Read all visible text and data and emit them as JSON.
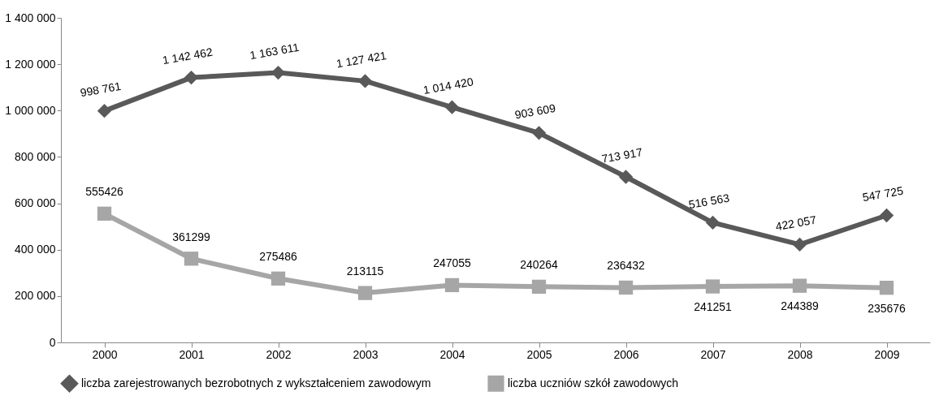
{
  "chart_data": {
    "type": "line",
    "categories": [
      "2000",
      "2001",
      "2002",
      "2003",
      "2004",
      "2005",
      "2006",
      "2007",
      "2008",
      "2009"
    ],
    "series": [
      {
        "name": "liczba zarejestrowanych bezrobotnych z wykształceniem zawodowym",
        "color": "#595959",
        "marker": "diamond",
        "values": [
          998761,
          1142462,
          1163611,
          1127421,
          1014420,
          903609,
          713917,
          516563,
          422057,
          547725
        ],
        "value_labels": [
          "998 761",
          "1 142 462",
          "1 163 611",
          "1 127 421",
          "1 014 420",
          "903 609",
          "713 917",
          "516 563",
          "422 057",
          "547 725"
        ]
      },
      {
        "name": "liczba uczniów szkół zawodowych",
        "color": "#a6a6a6",
        "marker": "square",
        "values": [
          555426,
          361299,
          275486,
          213115,
          247055,
          240264,
          236432,
          241251,
          244389,
          235676
        ],
        "value_labels": [
          "555426",
          "361299",
          "275486",
          "213115",
          "247055",
          "240264",
          "236432",
          "241251",
          "244389",
          "235676"
        ]
      }
    ],
    "ylim": [
      0,
      1400000
    ],
    "yticks": [
      {
        "value": 0,
        "label": "0"
      },
      {
        "value": 200000,
        "label": "200 000"
      },
      {
        "value": 400000,
        "label": "400 000"
      },
      {
        "value": 600000,
        "label": "600 000"
      },
      {
        "value": 800000,
        "label": "800 000"
      },
      {
        "value": 1000000,
        "label": "1 000 000"
      },
      {
        "value": 1200000,
        "label": "1 200 000"
      },
      {
        "value": 1400000,
        "label": "1 400 000"
      }
    ],
    "grid": false,
    "legend": "bottom",
    "line_style": "solid"
  }
}
